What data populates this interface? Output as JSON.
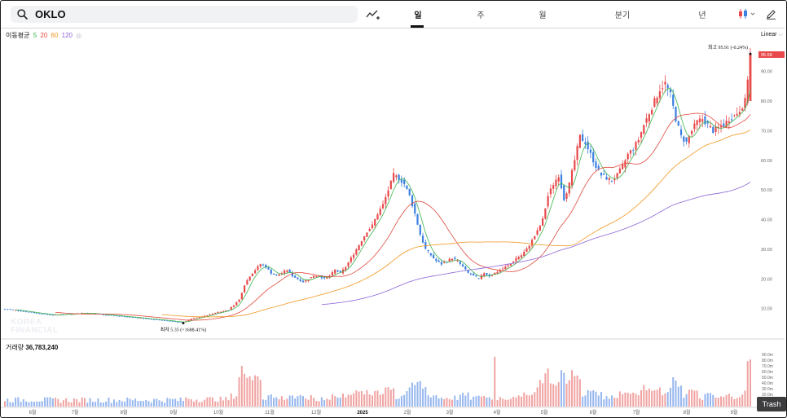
{
  "search": {
    "query": "OKLO"
  },
  "tabs": [
    {
      "label": "일",
      "active": true
    },
    {
      "label": "주",
      "active": false
    },
    {
      "label": "월",
      "active": false
    },
    {
      "label": "분기",
      "active": false
    },
    {
      "label": "년",
      "active": false
    }
  ],
  "moving_average": {
    "label": "이동평균",
    "periods": [
      {
        "label": "5",
        "color": "#3ab34a"
      },
      {
        "label": "20",
        "color": "#e0483c"
      },
      {
        "label": "60",
        "color": "#f0961e"
      },
      {
        "label": "120",
        "color": "#8b63d6"
      }
    ]
  },
  "scale_mode": "Linear",
  "watermark": {
    "line1": "KOREA",
    "line2": "FINANCIAL"
  },
  "volume": {
    "label": "거래량",
    "value": "36,783,240"
  },
  "trash_label": "Trash",
  "colors": {
    "up": "#e8494a",
    "down": "#3b7fe0",
    "price_tag": "#e8494a"
  },
  "icons": [
    "search-icon",
    "trend-chart-icon",
    "candlestick-icon",
    "chevron-down-icon",
    "pencil-icon"
  ],
  "chart_data": {
    "type": "candlestick",
    "ylim": [
      0,
      102
    ],
    "y_ticks": [
      10,
      20,
      30,
      40,
      50,
      60,
      70,
      80,
      90
    ],
    "y_tick_labels": [
      "10.00",
      "20.00",
      "30.00",
      "40.00",
      "50.00",
      "60.00",
      "70.00",
      "80.00",
      "90.00"
    ],
    "volume_ticks": [
      "90.0m",
      "80.0m",
      "70.0m",
      "60.0m",
      "50.0m",
      "40.0m",
      "30.0m",
      "20.0m"
    ],
    "x_labels": [
      "6월",
      "7월",
      "8월",
      "9월",
      "10월",
      "11월",
      "12월",
      "2025",
      "2월",
      "3월",
      "4월",
      "5월",
      "6월",
      "7월",
      "8월",
      "9월"
    ],
    "current_price": "95.68",
    "high_annotation": "최고 95.91 (-0.24%)",
    "low_annotation": "최저 5.35 (+1688.41%)",
    "price_path": [
      [
        0,
        9.8
      ],
      [
        6,
        9.2
      ],
      [
        12,
        8.4
      ],
      [
        18,
        7.8
      ],
      [
        24,
        8.1
      ],
      [
        30,
        8.5
      ],
      [
        36,
        8.0
      ],
      [
        42,
        7.5
      ],
      [
        48,
        7.0
      ],
      [
        54,
        6.5
      ],
      [
        60,
        6.0
      ],
      [
        64,
        5.5
      ],
      [
        67,
        5.35
      ],
      [
        70,
        6.5
      ],
      [
        75,
        7.5
      ],
      [
        80,
        8.8
      ],
      [
        84,
        9.5
      ],
      [
        88,
        13
      ],
      [
        90,
        18
      ],
      [
        92,
        21
      ],
      [
        94,
        23
      ],
      [
        96,
        25
      ],
      [
        98,
        24
      ],
      [
        100,
        22
      ],
      [
        102,
        21
      ],
      [
        104,
        22
      ],
      [
        106,
        23
      ],
      [
        108,
        21
      ],
      [
        110,
        20
      ],
      [
        112,
        19
      ],
      [
        114,
        20
      ],
      [
        116,
        21
      ],
      [
        118,
        21
      ],
      [
        120,
        20
      ],
      [
        122,
        21
      ],
      [
        124,
        23
      ],
      [
        126,
        22
      ],
      [
        128,
        24
      ],
      [
        130,
        27
      ],
      [
        132,
        30
      ],
      [
        134,
        33
      ],
      [
        136,
        36
      ],
      [
        138,
        38
      ],
      [
        140,
        42
      ],
      [
        142,
        45
      ],
      [
        144,
        50
      ],
      [
        146,
        55
      ],
      [
        148,
        54
      ],
      [
        150,
        52
      ],
      [
        152,
        48
      ],
      [
        154,
        42
      ],
      [
        156,
        35
      ],
      [
        158,
        30
      ],
      [
        160,
        28
      ],
      [
        162,
        26
      ],
      [
        164,
        25
      ],
      [
        166,
        26
      ],
      [
        168,
        27
      ],
      [
        170,
        26
      ],
      [
        172,
        24
      ],
      [
        174,
        22
      ],
      [
        176,
        21
      ],
      [
        178,
        20
      ],
      [
        180,
        22
      ],
      [
        182,
        21
      ],
      [
        184,
        22
      ],
      [
        186,
        23
      ],
      [
        188,
        24
      ],
      [
        190,
        25
      ],
      [
        192,
        27
      ],
      [
        194,
        28
      ],
      [
        196,
        30
      ],
      [
        198,
        33
      ],
      [
        200,
        36
      ],
      [
        202,
        40
      ],
      [
        204,
        48
      ],
      [
        206,
        52
      ],
      [
        208,
        55
      ],
      [
        210,
        47
      ],
      [
        212,
        52
      ],
      [
        214,
        60
      ],
      [
        216,
        68
      ],
      [
        218,
        66
      ],
      [
        220,
        62
      ],
      [
        222,
        58
      ],
      [
        224,
        55
      ],
      [
        226,
        54
      ],
      [
        228,
        53
      ],
      [
        230,
        55
      ],
      [
        232,
        58
      ],
      [
        234,
        62
      ],
      [
        236,
        64
      ],
      [
        238,
        67
      ],
      [
        240,
        72
      ],
      [
        242,
        76
      ],
      [
        244,
        80
      ],
      [
        246,
        84
      ],
      [
        248,
        86
      ],
      [
        250,
        82
      ],
      [
        252,
        74
      ],
      [
        254,
        68
      ],
      [
        256,
        66
      ],
      [
        258,
        70
      ],
      [
        260,
        73
      ],
      [
        262,
        74
      ],
      [
        264,
        72
      ],
      [
        266,
        70
      ],
      [
        268,
        71
      ],
      [
        270,
        72
      ],
      [
        272,
        74
      ],
      [
        274,
        75
      ],
      [
        276,
        77
      ],
      [
        278,
        80
      ],
      [
        280,
        95.68
      ]
    ]
  }
}
